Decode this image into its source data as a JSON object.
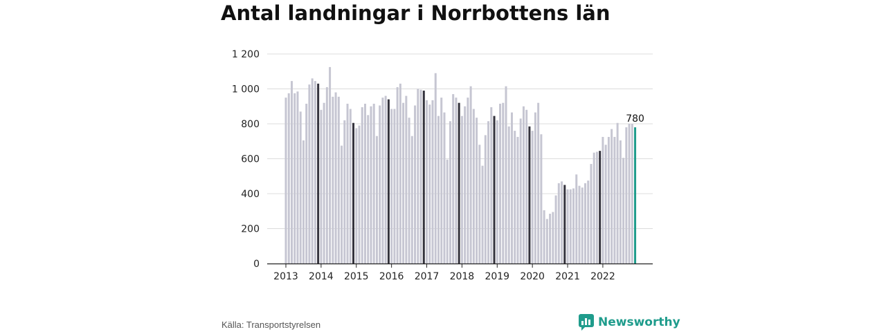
{
  "title": "Antal landningar i Norrbottens län",
  "source": "Källa: Transportstyrelsen",
  "brand": {
    "name": "Newsworthy",
    "icon": "newsworthy-logo-icon"
  },
  "colors": {
    "bar": "#c6c6d2",
    "december": "#34333d",
    "latest": "#1f9c8c",
    "grid": "#dcdcdc",
    "brand": "#1f9c8c"
  },
  "chart_data": {
    "type": "bar",
    "title": "Antal landningar i Norrbottens län",
    "xlabel": "",
    "ylabel": "",
    "ylim": [
      0,
      1200
    ],
    "yticks": [
      0,
      200,
      400,
      600,
      800,
      1000,
      1200
    ],
    "ytick_labels": [
      "0",
      "200",
      "400",
      "600",
      "800",
      "1 000",
      "1 200"
    ],
    "xtick_labels": [
      "2013",
      "2014",
      "2015",
      "2016",
      "2017",
      "2018",
      "2019",
      "2020",
      "2021",
      "2022"
    ],
    "start_year": 2013,
    "start_month": 1,
    "highlight_label": "780",
    "grid": true,
    "values": [
      950,
      975,
      1045,
      975,
      985,
      870,
      705,
      915,
      1025,
      1060,
      1045,
      1030,
      880,
      920,
      1010,
      1125,
      955,
      980,
      955,
      675,
      820,
      915,
      885,
      805,
      775,
      790,
      895,
      915,
      850,
      900,
      915,
      730,
      905,
      950,
      960,
      940,
      885,
      885,
      1010,
      1030,
      920,
      960,
      835,
      730,
      905,
      1000,
      995,
      990,
      935,
      910,
      935,
      1090,
      845,
      950,
      865,
      595,
      815,
      970,
      950,
      920,
      845,
      900,
      950,
      1015,
      885,
      835,
      680,
      560,
      735,
      815,
      895,
      845,
      820,
      915,
      920,
      1015,
      785,
      865,
      760,
      725,
      830,
      900,
      880,
      785,
      760,
      865,
      920,
      740,
      305,
      255,
      285,
      295,
      390,
      460,
      470,
      450,
      425,
      425,
      430,
      510,
      445,
      435,
      460,
      475,
      570,
      635,
      640,
      645,
      725,
      680,
      725,
      770,
      725,
      805,
      705,
      605,
      780,
      800,
      800,
      780
    ]
  }
}
